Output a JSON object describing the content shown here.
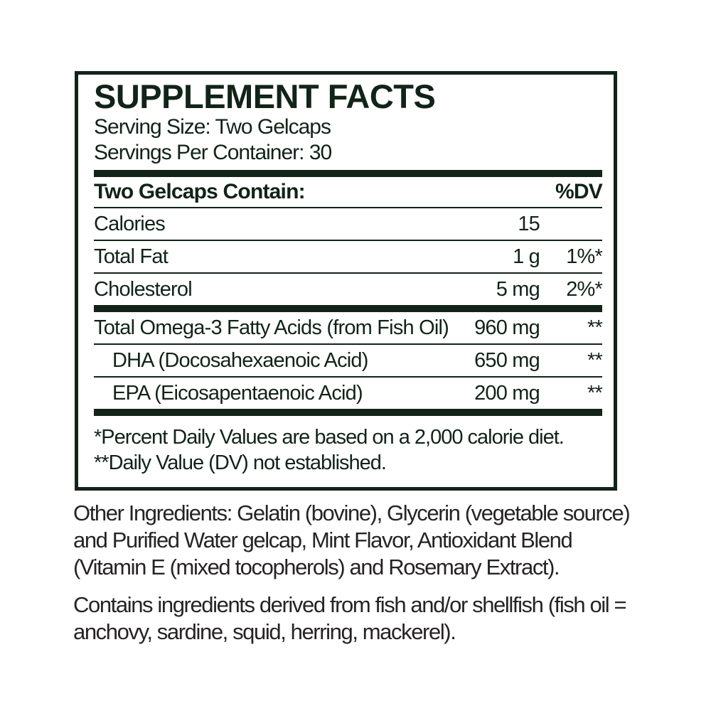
{
  "panel": {
    "title": "SUPPLEMENT FACTS",
    "serving_size": "Serving Size: Two Gelcaps",
    "servings_per_container": "Servings Per Container: 30",
    "table": {
      "header_left": "Two Gelcaps Contain:",
      "header_right": "%DV",
      "rows": [
        {
          "name": "Calories",
          "amount": "15",
          "dv": ""
        },
        {
          "name": "Total Fat",
          "amount": "1 g",
          "dv": "1%*"
        },
        {
          "name": "Cholesterol",
          "amount": "5 mg",
          "dv": "2%*"
        },
        {
          "name": "Total Omega-3 Fatty Acids (from Fish Oil)",
          "amount": "960 mg",
          "dv": "**"
        },
        {
          "name": "DHA (Docosahexaenoic Acid)",
          "amount": "650 mg",
          "dv": "**"
        },
        {
          "name": "EPA (Eicosapentaenoic Acid)",
          "amount": "200 mg",
          "dv": "**"
        }
      ]
    },
    "footnotes": [
      "*Percent Daily Values are based on a 2,000 calorie diet.",
      "**Daily Value (DV) not established."
    ]
  },
  "other_ingredients": {
    "lines": [
      "Other Ingredients: Gelatin (bovine), Glycerin (vegetable source)",
      "and Purified Water gelcap, Mint Flavor, Antioxidant Blend",
      "(Vitamin E (mixed tocopherols) and Rosemary Extract)."
    ]
  },
  "allergen_statement": {
    "lines": [
      "Contains ingredients derived from fish and/or shellfish (fish oil =",
      "anchovy, sardine, squid, herring, mackerel)."
    ]
  },
  "colors": {
    "label_ink": "#122318",
    "body_ink": "#272325"
  }
}
